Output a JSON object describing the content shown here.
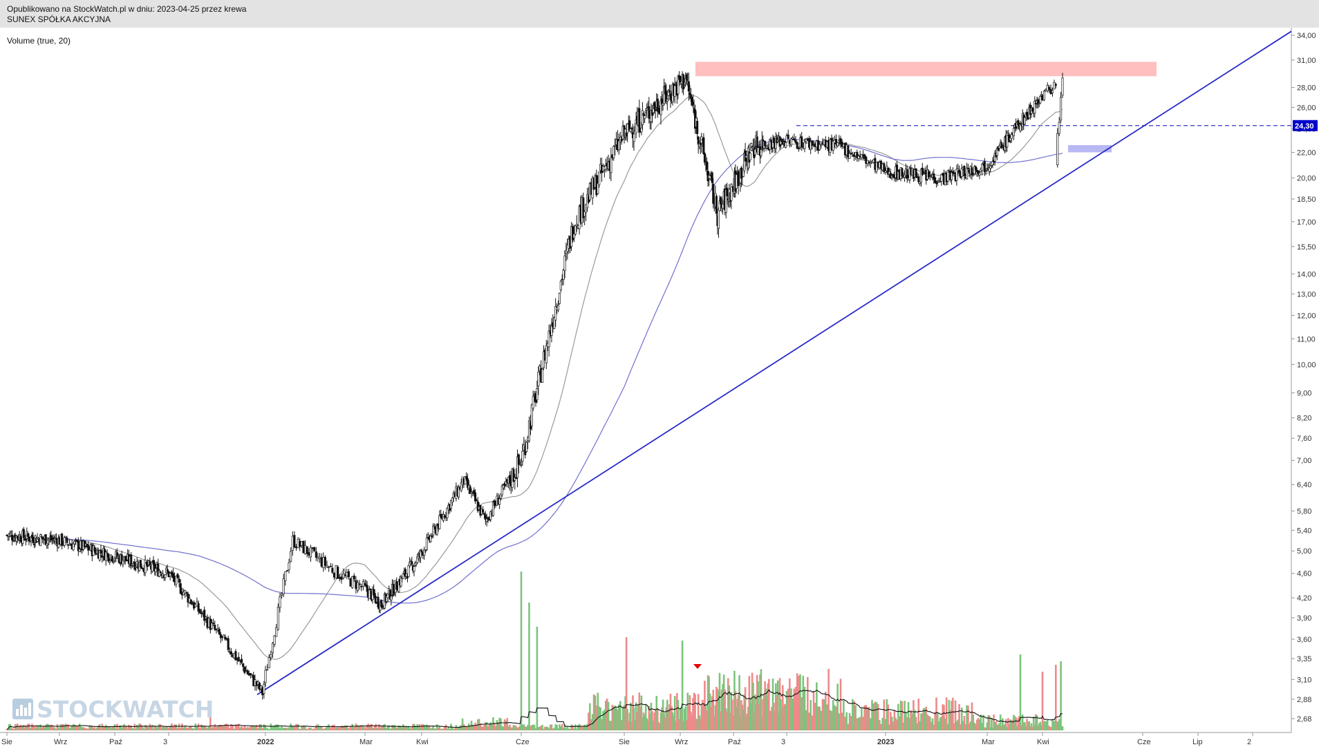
{
  "header": {
    "published": "Opublikowano na StockWatch.pl w dniu: 2023-04-25 przez krewa",
    "company": "SUNEX SPÓŁKA AKCYJNA"
  },
  "volume_label": "Volume (true, 20)",
  "logo_text": "STOCKWATCH",
  "colors": {
    "header_bg": "#e3e3e3",
    "up_volume": "#7cc47c",
    "down_volume": "#ee8a8a",
    "trendline": "#2a2ac8",
    "ma_short": "#999999",
    "ma_long": "#6f6fcf",
    "resistance_zone": "#ffbfbf",
    "target_zone": "#b8b8f4",
    "marker": "#e00000",
    "price_label_bg": "#0000cc"
  },
  "chart_data": {
    "type": "candlestick",
    "title": "SUNEX SPÓŁKA AKCYJNA",
    "scale": "log",
    "y_ticks": [
      "34,00",
      "31,00",
      "28,00",
      "26,00",
      "24,00",
      "22,00",
      "20,00",
      "18,50",
      "17,00",
      "15,50",
      "14,00",
      "13,00",
      "12,00",
      "11,00",
      "10,00",
      "9,00",
      "8,20",
      "7,60",
      "7,00",
      "6,40",
      "5,80",
      "5,40",
      "5,00",
      "4,60",
      "4,20",
      "3,90",
      "3,60",
      "3,35",
      "3,10",
      "2,88",
      "2,68"
    ],
    "x_ticks": [
      "Sie",
      "Wrz",
      "Paź",
      "3",
      "2022",
      "Mar",
      "Kwi",
      "Cze",
      "Sie",
      "Wrz",
      "Paź",
      "3",
      "2023",
      "Mar",
      "Kwi",
      "Cze",
      "Lip",
      "2"
    ],
    "x_ticks_bold": [
      "2022",
      "2023"
    ],
    "last_price_label": "24,30",
    "price_path": [
      [
        "Sie",
        5.3
      ],
      [
        "Wrz",
        5.2
      ],
      [
        "Paź",
        4.9
      ],
      [
        "3",
        4.6
      ],
      [
        "Dec",
        3.5
      ],
      [
        "2022",
        2.95
      ],
      [
        "Jan",
        5.2
      ],
      [
        "Feb",
        4.6
      ],
      [
        "Mar",
        4.1
      ],
      [
        "Kwi",
        4.9
      ],
      [
        "May",
        6.5
      ],
      [
        "May-late",
        5.6
      ],
      [
        "Cze",
        7.0
      ],
      [
        "Lip",
        17.0
      ],
      [
        "Sie",
        23.5
      ],
      [
        "Wrz",
        29.0
      ],
      [
        "Paź",
        17.5
      ],
      [
        "3",
        22.5
      ],
      [
        "Dec",
        23.0
      ],
      [
        "2023",
        22.5
      ],
      [
        "Feb",
        20.5
      ],
      [
        "Mar",
        20.0
      ],
      [
        "Kwi",
        21.0
      ],
      [
        "Kwi-end",
        29.0
      ]
    ],
    "annotations": {
      "resistance_zone": [
        29.2,
        30.8
      ],
      "horizontal_level": 24.3,
      "target_zone": [
        22.0,
        22.6
      ],
      "trendline": {
        "from_price": 2.93,
        "to_price": 34.5
      }
    },
    "volume_series": "Volume (true, 20)",
    "grid": false,
    "legend": "none"
  }
}
